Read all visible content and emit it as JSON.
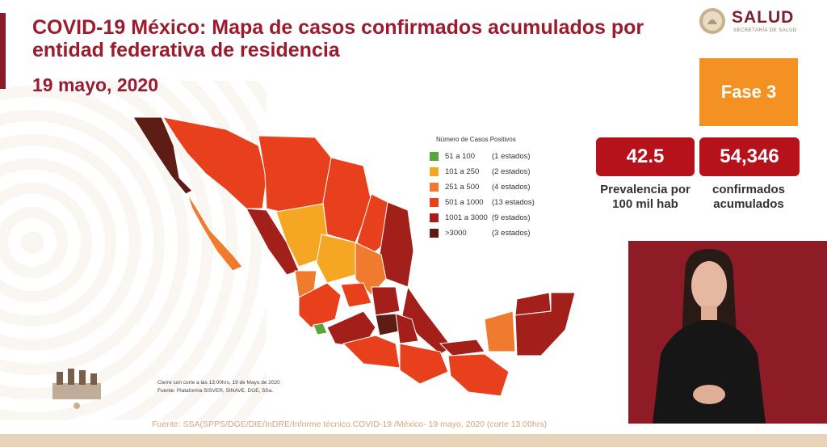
{
  "header": {
    "title": "COVID-19 México: Mapa de casos confirmados acumulados por entidad federativa de residencia",
    "date": "19 mayo, 2020"
  },
  "logo": {
    "name": "SALUD",
    "subtitle": "SECRETARÍA DE SALUD"
  },
  "fase": {
    "label": "Fase 3"
  },
  "stats": {
    "prevalencia": {
      "value": "42.5",
      "label": "Prevalencia por 100 mil hab"
    },
    "confirmados": {
      "value": "54,346",
      "label": "confirmados acumulados"
    }
  },
  "legend": {
    "title": "Número de Casos Positivos",
    "items": [
      {
        "range": "51 a 100",
        "count": "(1 estados)",
        "color": "#5aa638"
      },
      {
        "range": "101 a 250",
        "count": "(2 estados)",
        "color": "#f5a623"
      },
      {
        "range": "251 a 500",
        "count": "(4 estados)",
        "color": "#f07a2e"
      },
      {
        "range": "501 a 1000",
        "count": "(13 estados)",
        "color": "#e8401c"
      },
      {
        "range": "1001 a 3000",
        "count": "(9 estados)",
        "color": "#a3201a"
      },
      {
        "range": ">3000",
        "count": "(3 estados)",
        "color": "#5e1d14"
      }
    ]
  },
  "notes": {
    "cierre": "Cierre con corte a las 13:00hrs, 19 de Mayo de 2020",
    "fuente": "Fuente: Plataforma SISVER, SINAVE, DGE, SSa."
  },
  "footer": {
    "source": "Fuente: SSA(SPPS/DGE/DIE/InDRE/Informe técnico.COVID-19 /México- 19 mayo, 2020 (corte 13:00hrs)"
  },
  "colors": {
    "brand": "#9b1c2e",
    "fase": "#f39122",
    "stat": "#b5121b",
    "video_bg": "#8e1c27"
  }
}
